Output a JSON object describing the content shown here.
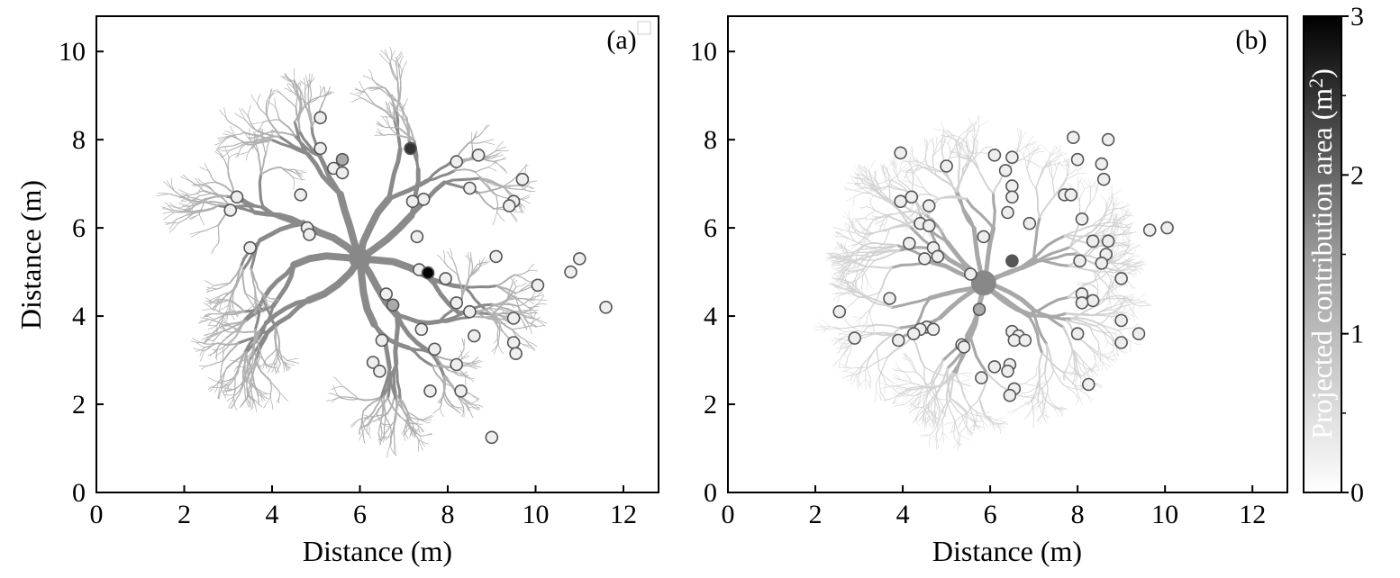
{
  "chart_data": [
    {
      "type": "scatter",
      "panel_label": "(a)",
      "xlabel": "Distance (m)",
      "ylabel": "Distance (m)",
      "xlim": [
        0,
        12.8
      ],
      "ylim": [
        0,
        10.8
      ],
      "xticks": [
        "0",
        "2",
        "4",
        "6",
        "8",
        "10",
        "12"
      ],
      "yticks": [
        "0",
        "2",
        "4",
        "6",
        "8",
        "10"
      ],
      "outlet": {
        "x": 6.0,
        "y": 5.3
      },
      "points": [
        {
          "x": 5.1,
          "y": 8.5,
          "v": 0.2
        },
        {
          "x": 5.1,
          "y": 7.8,
          "v": 0.2
        },
        {
          "x": 5.6,
          "y": 7.55,
          "v": 1.0
        },
        {
          "x": 5.4,
          "y": 7.35,
          "v": 0.2
        },
        {
          "x": 5.6,
          "y": 7.25,
          "v": 0.2
        },
        {
          "x": 7.15,
          "y": 7.8,
          "v": 2.4
        },
        {
          "x": 8.2,
          "y": 7.5,
          "v": 0.2
        },
        {
          "x": 8.7,
          "y": 7.65,
          "v": 0.2
        },
        {
          "x": 9.7,
          "y": 7.1,
          "v": 0.2
        },
        {
          "x": 8.5,
          "y": 6.9,
          "v": 0.2
        },
        {
          "x": 9.5,
          "y": 6.6,
          "v": 0.2
        },
        {
          "x": 9.4,
          "y": 6.5,
          "v": 0.2
        },
        {
          "x": 7.45,
          "y": 6.65,
          "v": 0.2
        },
        {
          "x": 7.2,
          "y": 6.6,
          "v": 0.2
        },
        {
          "x": 4.65,
          "y": 6.75,
          "v": 0.2
        },
        {
          "x": 3.2,
          "y": 6.7,
          "v": 0.2
        },
        {
          "x": 3.05,
          "y": 6.4,
          "v": 0.2
        },
        {
          "x": 4.8,
          "y": 6.0,
          "v": 0.2
        },
        {
          "x": 4.85,
          "y": 5.85,
          "v": 0.2
        },
        {
          "x": 3.5,
          "y": 5.55,
          "v": 0.2
        },
        {
          "x": 7.3,
          "y": 5.8,
          "v": 0.2
        },
        {
          "x": 9.1,
          "y": 5.35,
          "v": 0.2
        },
        {
          "x": 11.0,
          "y": 5.3,
          "v": 0.2
        },
        {
          "x": 10.8,
          "y": 5.0,
          "v": 0.2
        },
        {
          "x": 7.35,
          "y": 5.05,
          "v": 0.2
        },
        {
          "x": 7.55,
          "y": 4.98,
          "v": 3.0
        },
        {
          "x": 7.95,
          "y": 4.85,
          "v": 0.2
        },
        {
          "x": 10.05,
          "y": 4.7,
          "v": 0.2
        },
        {
          "x": 6.6,
          "y": 4.5,
          "v": 0.2
        },
        {
          "x": 6.75,
          "y": 4.25,
          "v": 1.0
        },
        {
          "x": 8.2,
          "y": 4.3,
          "v": 0.2
        },
        {
          "x": 8.5,
          "y": 4.1,
          "v": 0.2
        },
        {
          "x": 9.5,
          "y": 3.95,
          "v": 0.2
        },
        {
          "x": 11.6,
          "y": 4.2,
          "v": 0.2
        },
        {
          "x": 7.4,
          "y": 3.7,
          "v": 0.2
        },
        {
          "x": 8.6,
          "y": 3.55,
          "v": 0.2
        },
        {
          "x": 6.5,
          "y": 3.45,
          "v": 0.2
        },
        {
          "x": 9.5,
          "y": 3.4,
          "v": 0.2
        },
        {
          "x": 7.7,
          "y": 3.25,
          "v": 0.2
        },
        {
          "x": 9.55,
          "y": 3.15,
          "v": 0.2
        },
        {
          "x": 6.3,
          "y": 2.95,
          "v": 0.2
        },
        {
          "x": 8.2,
          "y": 2.9,
          "v": 0.2
        },
        {
          "x": 6.45,
          "y": 2.75,
          "v": 0.2
        },
        {
          "x": 7.6,
          "y": 2.3,
          "v": 0.2
        },
        {
          "x": 8.3,
          "y": 2.3,
          "v": 0.2
        },
        {
          "x": 9.0,
          "y": 1.25,
          "v": 0.2
        }
      ]
    },
    {
      "type": "scatter",
      "panel_label": "(b)",
      "xlabel": "Distance (m)",
      "ylabel": "",
      "xlim": [
        0,
        12.8
      ],
      "ylim": [
        0,
        10.8
      ],
      "xticks": [
        "0",
        "2",
        "4",
        "6",
        "8",
        "10",
        "12"
      ],
      "yticks": [
        "0",
        "2",
        "4",
        "6",
        "8",
        "10"
      ],
      "outlet": {
        "x": 5.85,
        "y": 4.75
      },
      "points": [
        {
          "x": 3.95,
          "y": 7.7,
          "v": 0.2
        },
        {
          "x": 5.0,
          "y": 7.4,
          "v": 0.2
        },
        {
          "x": 6.1,
          "y": 7.65,
          "v": 0.2
        },
        {
          "x": 6.35,
          "y": 7.3,
          "v": 0.2
        },
        {
          "x": 6.5,
          "y": 7.6,
          "v": 0.2
        },
        {
          "x": 6.5,
          "y": 6.95,
          "v": 0.2
        },
        {
          "x": 7.9,
          "y": 8.05,
          "v": 0.2
        },
        {
          "x": 8.0,
          "y": 7.55,
          "v": 0.2
        },
        {
          "x": 8.7,
          "y": 8.0,
          "v": 0.2
        },
        {
          "x": 8.55,
          "y": 7.45,
          "v": 0.2
        },
        {
          "x": 8.6,
          "y": 7.1,
          "v": 0.2
        },
        {
          "x": 6.5,
          "y": 6.7,
          "v": 0.2
        },
        {
          "x": 7.7,
          "y": 6.75,
          "v": 0.2
        },
        {
          "x": 7.85,
          "y": 6.75,
          "v": 0.2
        },
        {
          "x": 3.95,
          "y": 6.6,
          "v": 0.2
        },
        {
          "x": 4.2,
          "y": 6.7,
          "v": 0.2
        },
        {
          "x": 4.6,
          "y": 6.5,
          "v": 0.2
        },
        {
          "x": 6.4,
          "y": 6.35,
          "v": 0.2
        },
        {
          "x": 4.4,
          "y": 6.1,
          "v": 0.2
        },
        {
          "x": 4.6,
          "y": 6.05,
          "v": 0.2
        },
        {
          "x": 6.9,
          "y": 6.1,
          "v": 0.2
        },
        {
          "x": 8.1,
          "y": 6.2,
          "v": 0.2
        },
        {
          "x": 5.85,
          "y": 5.8,
          "v": 0.2
        },
        {
          "x": 4.15,
          "y": 5.65,
          "v": 0.2
        },
        {
          "x": 4.7,
          "y": 5.55,
          "v": 0.2
        },
        {
          "x": 4.8,
          "y": 5.35,
          "v": 0.2
        },
        {
          "x": 4.5,
          "y": 5.3,
          "v": 0.2
        },
        {
          "x": 8.35,
          "y": 5.7,
          "v": 0.2
        },
        {
          "x": 8.7,
          "y": 5.7,
          "v": 0.2
        },
        {
          "x": 9.65,
          "y": 5.95,
          "v": 0.2
        },
        {
          "x": 10.05,
          "y": 6.0,
          "v": 0.2
        },
        {
          "x": 8.65,
          "y": 5.4,
          "v": 0.2
        },
        {
          "x": 8.05,
          "y": 5.25,
          "v": 0.2
        },
        {
          "x": 8.55,
          "y": 5.2,
          "v": 0.2
        },
        {
          "x": 6.5,
          "y": 5.25,
          "v": 2.0
        },
        {
          "x": 5.55,
          "y": 4.95,
          "v": 0.2
        },
        {
          "x": 9.0,
          "y": 4.85,
          "v": 0.2
        },
        {
          "x": 8.1,
          "y": 4.5,
          "v": 0.2
        },
        {
          "x": 8.35,
          "y": 4.35,
          "v": 0.2
        },
        {
          "x": 8.1,
          "y": 4.3,
          "v": 0.2
        },
        {
          "x": 3.7,
          "y": 4.4,
          "v": 0.2
        },
        {
          "x": 2.55,
          "y": 4.1,
          "v": 0.2
        },
        {
          "x": 5.75,
          "y": 4.15,
          "v": 1.0
        },
        {
          "x": 4.55,
          "y": 3.75,
          "v": 0.2
        },
        {
          "x": 4.4,
          "y": 3.7,
          "v": 0.2
        },
        {
          "x": 4.7,
          "y": 3.7,
          "v": 0.2
        },
        {
          "x": 4.25,
          "y": 3.6,
          "v": 0.2
        },
        {
          "x": 6.5,
          "y": 3.65,
          "v": 0.2
        },
        {
          "x": 6.65,
          "y": 3.55,
          "v": 0.2
        },
        {
          "x": 6.55,
          "y": 3.45,
          "v": 0.2
        },
        {
          "x": 6.8,
          "y": 3.45,
          "v": 0.2
        },
        {
          "x": 2.9,
          "y": 3.5,
          "v": 0.2
        },
        {
          "x": 3.9,
          "y": 3.45,
          "v": 0.2
        },
        {
          "x": 5.35,
          "y": 3.35,
          "v": 0.2
        },
        {
          "x": 5.4,
          "y": 3.3,
          "v": 0.2
        },
        {
          "x": 8.0,
          "y": 3.6,
          "v": 0.2
        },
        {
          "x": 9.0,
          "y": 3.9,
          "v": 0.2
        },
        {
          "x": 9.4,
          "y": 3.6,
          "v": 0.2
        },
        {
          "x": 9.0,
          "y": 3.4,
          "v": 0.2
        },
        {
          "x": 6.1,
          "y": 2.85,
          "v": 0.2
        },
        {
          "x": 6.45,
          "y": 2.9,
          "v": 0.2
        },
        {
          "x": 6.4,
          "y": 2.75,
          "v": 0.2
        },
        {
          "x": 5.8,
          "y": 2.6,
          "v": 0.2
        },
        {
          "x": 6.55,
          "y": 2.35,
          "v": 0.2
        },
        {
          "x": 6.45,
          "y": 2.2,
          "v": 0.2
        },
        {
          "x": 8.25,
          "y": 2.45,
          "v": 0.2
        }
      ]
    }
  ],
  "colorbar": {
    "label": "Projected contribution area (m",
    "label_sup": "2",
    "label_end": ")",
    "min": 0,
    "max": 3,
    "ticks": [
      "0",
      "1",
      "2",
      "3"
    ]
  }
}
